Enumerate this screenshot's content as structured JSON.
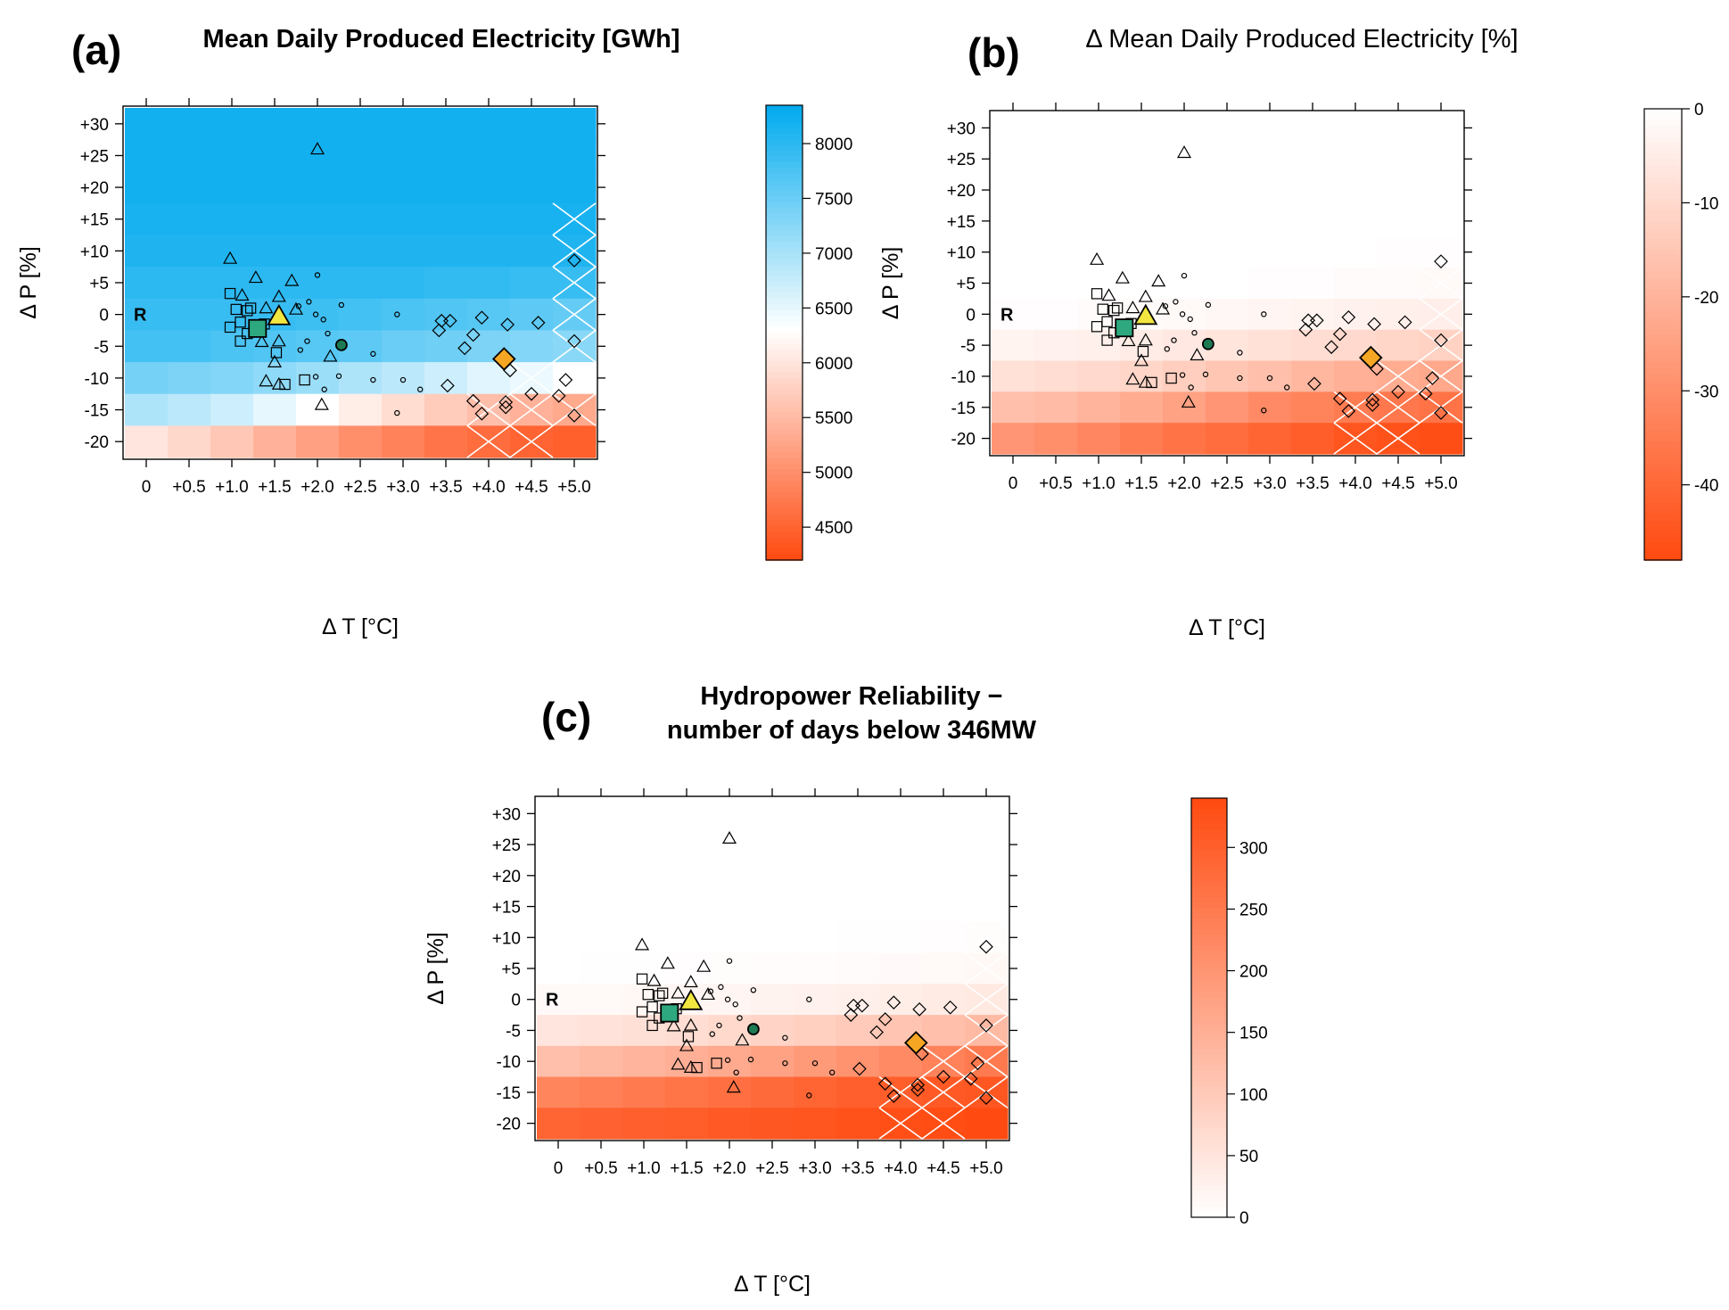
{
  "figure": {
    "grid_x": [
      0,
      0.5,
      1.0,
      1.5,
      2.0,
      2.5,
      3.0,
      3.5,
      4.0,
      4.5,
      5.0
    ],
    "grid_y": [
      30,
      25,
      20,
      15,
      10,
      5,
      0,
      -5,
      -10,
      -15,
      -20
    ]
  },
  "chart_data": [
    {
      "type": "heatmap",
      "panel": "(a)",
      "title": "Mean Daily Produced Electricity [GWh]",
      "xlabel": "Δ T [°C]",
      "ylabel": "Δ P [%]",
      "x_tick_labels": [
        "0",
        "+0.5",
        "+1.0",
        "+1.5",
        "+2.0",
        "+2.5",
        "+3.0",
        "+3.5",
        "+4.0",
        "+4.5",
        "+5.0"
      ],
      "y_tick_labels": [
        "+30",
        "+25",
        "+20",
        "+15",
        "+10",
        "+5",
        "0",
        "-5",
        "-10",
        "-15",
        "-20"
      ],
      "colorbar": {
        "ticks": [
          8000,
          7500,
          7000,
          6500,
          6000,
          5500,
          5000,
          4500
        ],
        "range": [
          4200,
          8350
        ]
      },
      "grid": [
        [
          8200,
          8200,
          8200,
          8200,
          8200,
          8200,
          8200,
          8200,
          8200,
          8200,
          8200
        ],
        [
          8200,
          8200,
          8200,
          8200,
          8200,
          8200,
          8200,
          8200,
          8200,
          8200,
          8200
        ],
        [
          8200,
          8200,
          8200,
          8200,
          8200,
          8200,
          8200,
          8200,
          8200,
          8200,
          8200
        ],
        [
          8150,
          8150,
          8150,
          8150,
          8150,
          8150,
          8150,
          8150,
          8150,
          8150,
          8150
        ],
        [
          8100,
          8100,
          8100,
          8100,
          8100,
          8100,
          8100,
          8100,
          8100,
          8100,
          8100
        ],
        [
          8000,
          8000,
          8000,
          8000,
          8000,
          8000,
          8000,
          7950,
          7950,
          7900,
          7900
        ],
        [
          7900,
          7900,
          7900,
          7900,
          7850,
          7800,
          7750,
          7700,
          7650,
          7600,
          7550
        ],
        [
          7800,
          7800,
          7750,
          7700,
          7650,
          7600,
          7500,
          7450,
          7350,
          7300,
          7250
        ],
        [
          7400,
          7350,
          7300,
          7200,
          7100,
          6950,
          6850,
          6700,
          6550,
          6450,
          6300
        ],
        [
          6950,
          6850,
          6700,
          6500,
          6300,
          6100,
          5900,
          5700,
          5550,
          5400,
          5300
        ],
        [
          6000,
          5850,
          5650,
          5400,
          5200,
          5000,
          4850,
          4700,
          4600,
          4500,
          4450
        ]
      ],
      "hatched_cells": [
        [
          8,
          10
        ],
        [
          9,
          10
        ],
        [
          9,
          9
        ],
        [
          10,
          9
        ],
        [
          8,
          9
        ],
        [
          9,
          8
        ],
        [
          10,
          8
        ],
        [
          3,
          10
        ],
        [
          4,
          10
        ],
        [
          5,
          10
        ],
        [
          6,
          10
        ],
        [
          7,
          10
        ]
      ],
      "reference_label": "R"
    },
    {
      "type": "heatmap",
      "panel": "(b)",
      "title": "Δ Mean Daily Produced Electricity [%]",
      "xlabel": "Δ T [°C]",
      "ylabel": "Δ P [%]",
      "x_tick_labels": [
        "0",
        "+0.5",
        "+1.0",
        "+1.5",
        "+2.0",
        "+2.5",
        "+3.0",
        "+3.5",
        "+4.0",
        "+4.5",
        "+5.0"
      ],
      "y_tick_labels": [
        "+30",
        "+25",
        "+20",
        "+15",
        "+10",
        "+5",
        "0",
        "-5",
        "-10",
        "-15",
        "-20"
      ],
      "colorbar": {
        "ticks": [
          0,
          -10,
          -20,
          -30,
          -40
        ],
        "range": [
          -48,
          0
        ]
      },
      "grid": [
        [
          0,
          0,
          0,
          0,
          0,
          0,
          0,
          0,
          0,
          0,
          0
        ],
        [
          0,
          0,
          0,
          0,
          0,
          0,
          0,
          0,
          0,
          0,
          0
        ],
        [
          0,
          0,
          0,
          0,
          0,
          0,
          0,
          0,
          0,
          0,
          0
        ],
        [
          0,
          0,
          0,
          0,
          0,
          0,
          0,
          0,
          0,
          0,
          0
        ],
        [
          0,
          0,
          0,
          0,
          0,
          0,
          0,
          0,
          0,
          -0.5,
          -0.5
        ],
        [
          0,
          0,
          0,
          0,
          0,
          0,
          -0.5,
          -0.5,
          -1,
          -1,
          -1.5
        ],
        [
          -0.5,
          -0.5,
          -1,
          -1,
          -1.5,
          -2,
          -2.5,
          -3,
          -3.5,
          -4,
          -4.5
        ],
        [
          -3,
          -3.5,
          -4,
          -5,
          -6,
          -7,
          -8,
          -9,
          -10,
          -11,
          -12
        ],
        [
          -8,
          -9,
          -10,
          -11,
          -13,
          -15,
          -17,
          -19,
          -21,
          -22,
          -23
        ],
        [
          -17,
          -18,
          -20,
          -22,
          -25,
          -28,
          -31,
          -33,
          -35,
          -36,
          -37
        ],
        [
          -28,
          -30,
          -32,
          -35,
          -37,
          -39,
          -41,
          -43,
          -45,
          -46,
          -47
        ]
      ],
      "hatched_cells": [
        [
          8,
          10
        ],
        [
          9,
          10
        ],
        [
          9,
          9
        ],
        [
          10,
          9
        ],
        [
          8,
          9
        ],
        [
          9,
          8
        ],
        [
          10,
          8
        ],
        [
          3,
          10
        ],
        [
          4,
          10
        ],
        [
          5,
          10
        ],
        [
          6,
          10
        ],
        [
          7,
          10
        ]
      ],
      "reference_label": "R"
    },
    {
      "type": "heatmap",
      "panel": "(c)",
      "title": "Hydropower Reliability −",
      "subtitle": "number of days below 346MW",
      "xlabel": "Δ T [°C]",
      "ylabel": "Δ P [%]",
      "x_tick_labels": [
        "0",
        "+0.5",
        "+1.0",
        "+1.5",
        "+2.0",
        "+2.5",
        "+3.0",
        "+3.5",
        "+4.0",
        "+4.5",
        "+5.0"
      ],
      "y_tick_labels": [
        "+30",
        "+25",
        "+20",
        "+15",
        "+10",
        "+5",
        "0",
        "-5",
        "-10",
        "-15",
        "-20"
      ],
      "colorbar": {
        "ticks": [
          300,
          250,
          200,
          150,
          100,
          50,
          0
        ],
        "range": [
          0,
          340
        ]
      },
      "grid": [
        [
          0,
          0,
          0,
          0,
          0,
          0,
          0,
          0,
          0,
          0,
          0
        ],
        [
          0,
          0,
          0,
          0,
          0,
          0,
          0,
          0,
          0,
          0,
          0
        ],
        [
          0,
          0,
          0,
          0,
          0,
          0,
          0,
          0,
          0,
          0,
          0
        ],
        [
          0,
          0,
          0,
          0,
          0,
          0,
          0,
          0,
          0,
          0,
          0
        ],
        [
          0,
          0,
          0,
          0,
          0,
          0,
          0,
          1,
          2,
          3,
          4
        ],
        [
          0,
          1,
          2,
          3,
          4,
          5,
          6,
          7,
          9,
          11,
          14
        ],
        [
          10,
          12,
          14,
          16,
          19,
          22,
          26,
          30,
          34,
          38,
          42
        ],
        [
          48,
          52,
          58,
          64,
          72,
          80,
          90,
          100,
          110,
          120,
          130
        ],
        [
          120,
          130,
          140,
          150,
          160,
          175,
          190,
          205,
          220,
          235,
          250
        ],
        [
          230,
          240,
          250,
          260,
          270,
          280,
          290,
          300,
          305,
          310,
          315
        ],
        [
          290,
          295,
          300,
          305,
          310,
          315,
          320,
          325,
          330,
          335,
          338
        ]
      ],
      "hatched_cells": [
        [
          8,
          10
        ],
        [
          9,
          10
        ],
        [
          9,
          9
        ],
        [
          10,
          9
        ],
        [
          8,
          9
        ],
        [
          9,
          8
        ],
        [
          10,
          8
        ],
        [
          3,
          10
        ],
        [
          4,
          10
        ],
        [
          5,
          10
        ],
        [
          6,
          10
        ],
        [
          7,
          10
        ]
      ],
      "reference_label": "R"
    }
  ],
  "scatter_points": [
    {
      "shape": "triangle",
      "x": 0.98,
      "y": 8.8,
      "size": "small"
    },
    {
      "shape": "triangle",
      "x": 1.28,
      "y": 5.8,
      "size": "small"
    },
    {
      "shape": "triangle",
      "x": 1.55,
      "y": 2.8,
      "size": "small"
    },
    {
      "shape": "triangle",
      "x": 1.7,
      "y": 5.3,
      "size": "small"
    },
    {
      "shape": "triangle",
      "x": 1.12,
      "y": 3.0,
      "size": "small"
    },
    {
      "shape": "triangle",
      "x": 1.4,
      "y": 1.0,
      "size": "small"
    },
    {
      "shape": "triangle",
      "x": 1.75,
      "y": 0.8,
      "size": "small"
    },
    {
      "shape": "triangle",
      "x": 2.0,
      "y": 26.0,
      "size": "small"
    },
    {
      "shape": "triangle",
      "x": 1.35,
      "y": -4.3,
      "size": "small"
    },
    {
      "shape": "triangle",
      "x": 1.5,
      "y": -7.5,
      "size": "small"
    },
    {
      "shape": "triangle",
      "x": 1.55,
      "y": -4.2,
      "size": "small"
    },
    {
      "shape": "triangle",
      "x": 2.15,
      "y": -6.6,
      "size": "small"
    },
    {
      "shape": "triangle",
      "x": 1.4,
      "y": -10.5,
      "size": "small"
    },
    {
      "shape": "triangle",
      "x": 1.55,
      "y": -11.0,
      "size": "small"
    },
    {
      "shape": "triangle",
      "x": 2.05,
      "y": -14.2,
      "size": "small"
    },
    {
      "shape": "square",
      "x": 0.98,
      "y": 3.3,
      "size": "small"
    },
    {
      "shape": "square",
      "x": 1.05,
      "y": 0.8,
      "size": "small"
    },
    {
      "shape": "square",
      "x": 1.18,
      "y": 0.6,
      "size": "small"
    },
    {
      "shape": "square",
      "x": 1.22,
      "y": 1.0,
      "size": "small"
    },
    {
      "shape": "square",
      "x": 1.1,
      "y": -1.2,
      "size": "small"
    },
    {
      "shape": "square",
      "x": 0.98,
      "y": -2.0,
      "size": "small"
    },
    {
      "shape": "square",
      "x": 1.18,
      "y": -3.0,
      "size": "small"
    },
    {
      "shape": "square",
      "x": 1.1,
      "y": -4.2,
      "size": "small"
    },
    {
      "shape": "square",
      "x": 1.52,
      "y": -6.0,
      "size": "small"
    },
    {
      "shape": "square",
      "x": 1.62,
      "y": -11.0,
      "size": "small"
    },
    {
      "shape": "square",
      "x": 1.85,
      "y": -10.3,
      "size": "small"
    },
    {
      "shape": "square",
      "x": 1.38,
      "y": -1.5,
      "size": "small"
    },
    {
      "shape": "circle",
      "x": 1.78,
      "y": 1.3,
      "size": "small"
    },
    {
      "shape": "circle",
      "x": 1.9,
      "y": 2.0,
      "size": "small"
    },
    {
      "shape": "circle",
      "x": 2.0,
      "y": 6.2,
      "size": "small"
    },
    {
      "shape": "circle",
      "x": 1.98,
      "y": 0.0,
      "size": "small"
    },
    {
      "shape": "circle",
      "x": 2.07,
      "y": -0.8,
      "size": "small"
    },
    {
      "shape": "circle",
      "x": 2.28,
      "y": 1.5,
      "size": "small"
    },
    {
      "shape": "circle",
      "x": 2.12,
      "y": -3.0,
      "size": "small"
    },
    {
      "shape": "circle",
      "x": 1.88,
      "y": -4.2,
      "size": "small"
    },
    {
      "shape": "circle",
      "x": 1.8,
      "y": -5.6,
      "size": "small"
    },
    {
      "shape": "circle",
      "x": 1.98,
      "y": -9.8,
      "size": "small"
    },
    {
      "shape": "circle",
      "x": 2.25,
      "y": -9.7,
      "size": "small"
    },
    {
      "shape": "circle",
      "x": 2.65,
      "y": -6.2,
      "size": "small"
    },
    {
      "shape": "circle",
      "x": 2.65,
      "y": -10.3,
      "size": "small"
    },
    {
      "shape": "circle",
      "x": 2.93,
      "y": 0.0,
      "size": "small"
    },
    {
      "shape": "circle",
      "x": 3.0,
      "y": -10.3,
      "size": "small"
    },
    {
      "shape": "circle",
      "x": 3.2,
      "y": -11.8,
      "size": "small"
    },
    {
      "shape": "circle",
      "x": 2.93,
      "y": -15.5,
      "size": "small"
    },
    {
      "shape": "circle",
      "x": 2.08,
      "y": -11.8,
      "size": "small"
    },
    {
      "shape": "diamond",
      "x": 3.45,
      "y": -1.0,
      "size": "small"
    },
    {
      "shape": "diamond",
      "x": 3.42,
      "y": -2.5,
      "size": "small"
    },
    {
      "shape": "diamond",
      "x": 3.55,
      "y": -1.0,
      "size": "small"
    },
    {
      "shape": "diamond",
      "x": 3.92,
      "y": -0.5,
      "size": "small"
    },
    {
      "shape": "diamond",
      "x": 3.82,
      "y": -3.2,
      "size": "small"
    },
    {
      "shape": "diamond",
      "x": 3.72,
      "y": -5.3,
      "size": "small"
    },
    {
      "shape": "diamond",
      "x": 4.22,
      "y": -1.6,
      "size": "small"
    },
    {
      "shape": "diamond",
      "x": 4.58,
      "y": -1.3,
      "size": "small"
    },
    {
      "shape": "diamond",
      "x": 5.0,
      "y": 8.5,
      "size": "small"
    },
    {
      "shape": "diamond",
      "x": 5.0,
      "y": -4.2,
      "size": "small"
    },
    {
      "shape": "diamond",
      "x": 4.25,
      "y": -8.8,
      "size": "small"
    },
    {
      "shape": "diamond",
      "x": 3.52,
      "y": -11.2,
      "size": "small"
    },
    {
      "shape": "diamond",
      "x": 3.82,
      "y": -13.6,
      "size": "small"
    },
    {
      "shape": "diamond",
      "x": 3.92,
      "y": -15.6,
      "size": "small"
    },
    {
      "shape": "diamond",
      "x": 4.2,
      "y": -13.8,
      "size": "small"
    },
    {
      "shape": "diamond",
      "x": 4.2,
      "y": -14.6,
      "size": "small"
    },
    {
      "shape": "diamond",
      "x": 4.5,
      "y": -12.5,
      "size": "small"
    },
    {
      "shape": "diamond",
      "x": 4.9,
      "y": -10.3,
      "size": "small"
    },
    {
      "shape": "diamond",
      "x": 4.82,
      "y": -12.8,
      "size": "small"
    },
    {
      "shape": "diamond",
      "x": 5.0,
      "y": -15.9,
      "size": "small"
    },
    {
      "shape": "square",
      "x": 1.3,
      "y": -2.2,
      "size": "large",
      "fill": "#2ea87e"
    },
    {
      "shape": "triangle",
      "x": 1.55,
      "y": -0.3,
      "size": "large",
      "fill": "#f2e640"
    },
    {
      "shape": "circle",
      "x": 2.28,
      "y": -4.8,
      "size": "medium",
      "fill": "#1e7a52"
    },
    {
      "shape": "diamond",
      "x": 4.18,
      "y": -7.0,
      "size": "large",
      "fill": "#f5a623"
    }
  ],
  "colors": {
    "blue_high": "#00aaee",
    "white_mid": "#ffffff",
    "orange_low": "#ff4a10",
    "hatch": "#ffffff"
  }
}
